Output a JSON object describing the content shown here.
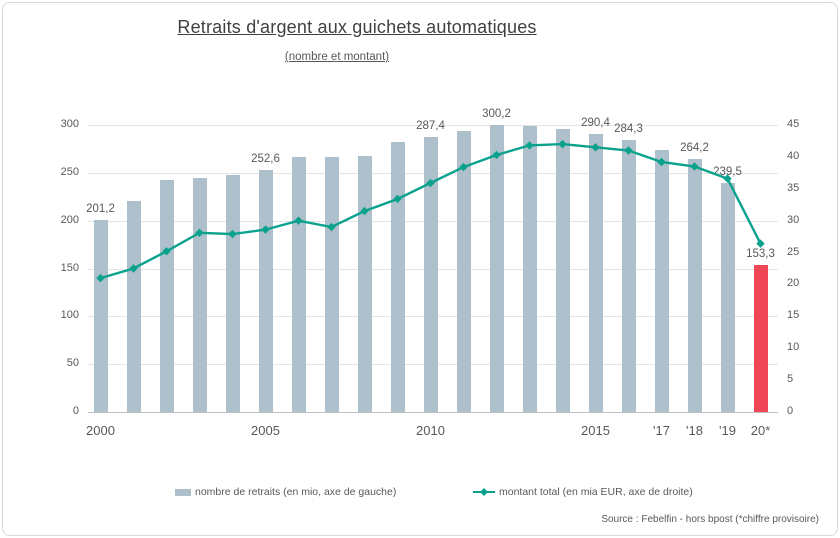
{
  "chart": {
    "title": "Retraits d'argent aux guichets automatiques",
    "subtitle": "(nombre et montant)",
    "source": "Source : Febelfin - hors bpost (*chiffre provisoire)",
    "legend": [
      {
        "label": "nombre de retraits (en mio, axe de gauche)",
        "type": "bar"
      },
      {
        "label": "montant total (en mia EUR, axe de droite)",
        "type": "line"
      }
    ]
  },
  "chart_data": {
    "type": "bar",
    "title": "Retraits d'argent aux guichets automatiques (nombre et montant)",
    "x": [
      2000,
      2001,
      2002,
      2003,
      2004,
      2005,
      2006,
      2007,
      2008,
      2009,
      2010,
      2011,
      2012,
      2013,
      2014,
      2015,
      2016,
      2017,
      2018,
      2019,
      2020
    ],
    "series": [
      {
        "name": "nombre de retraits (en mio, axe de gauche)",
        "type": "bar",
        "axis": "left",
        "color": "#adc0cc",
        "highlight_index": 20,
        "highlight_color": "#ee4656",
        "values": [
          201.2,
          221,
          243,
          245,
          248,
          252.6,
          267,
          267,
          268,
          282,
          287.4,
          294,
          300.2,
          299,
          296,
          290.4,
          284.3,
          274,
          264.2,
          239.5,
          153.3
        ]
      },
      {
        "name": "montant total (en mia EUR, axe de droite)",
        "type": "line",
        "axis": "right",
        "color": "#0aa28d",
        "values": [
          21.0,
          22.5,
          25.2,
          28.1,
          27.9,
          28.6,
          30.0,
          29.0,
          31.5,
          33.4,
          35.9,
          38.4,
          40.3,
          41.8,
          42.0,
          41.5,
          41.0,
          39.2,
          38.5,
          36.6,
          26.4
        ]
      }
    ],
    "bar_labels": [
      {
        "index": 0,
        "text": "201,2"
      },
      {
        "index": 5,
        "text": "252,6"
      },
      {
        "index": 10,
        "text": "287,4"
      },
      {
        "index": 12,
        "text": "300,2"
      },
      {
        "index": 15,
        "text": "290,4"
      },
      {
        "index": 16,
        "text": "284,3"
      },
      {
        "index": 18,
        "text": "264,2"
      },
      {
        "index": 19,
        "text": "239,5"
      },
      {
        "index": 20,
        "text": "153,3"
      }
    ],
    "x_ticks": [
      {
        "index": 0,
        "label": "2000"
      },
      {
        "index": 5,
        "label": "2005"
      },
      {
        "index": 10,
        "label": "2010"
      },
      {
        "index": 15,
        "label": "2015"
      },
      {
        "index": 17,
        "label": "'17"
      },
      {
        "index": 18,
        "label": "'18"
      },
      {
        "index": 19,
        "label": "'19"
      },
      {
        "index": 20,
        "label": "20*"
      }
    ],
    "left_axis": {
      "min": 0,
      "max": 300,
      "step": 50
    },
    "right_axis": {
      "min": 0,
      "max": 45,
      "step": 5
    },
    "grid": true,
    "legend_position": "bottom"
  }
}
